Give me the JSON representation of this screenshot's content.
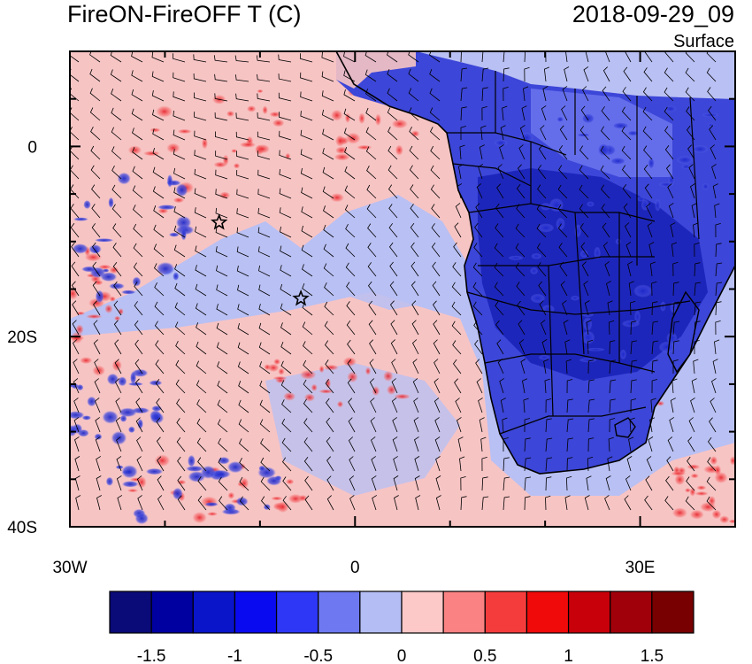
{
  "title_left": "FireON-FireOFF T (C)",
  "title_right": "2018-09-29_09",
  "subtitle_right": "Surface",
  "map": {
    "lon_range": [
      -30,
      40
    ],
    "lat_range": [
      -40,
      10
    ],
    "x_labels": [
      {
        "lon": -30,
        "text": "30W"
      },
      {
        "lon": 0,
        "text": "0"
      },
      {
        "lon": 30,
        "text": "30E"
      }
    ],
    "y_labels": [
      {
        "lat": 0,
        "text": "0"
      },
      {
        "lat": -20,
        "text": "20S"
      },
      {
        "lat": -40,
        "text": "40S"
      }
    ],
    "markers": [
      {
        "type": "star-icon",
        "lon": -14.3,
        "lat": -8.0
      },
      {
        "type": "star-icon",
        "lon": -5.7,
        "lat": -16.0
      }
    ]
  },
  "colorbar": {
    "colors": [
      "#0a0a78",
      "#0000a0",
      "#0a14c8",
      "#0a0af0",
      "#2d37f5",
      "#6e78f0",
      "#b4bef5",
      "#fcc8c8",
      "#fa8282",
      "#f53c3c",
      "#f00a0a",
      "#c8000a",
      "#a0000a",
      "#780000"
    ],
    "labels": [
      {
        "value": -1.5,
        "text": "-1.5"
      },
      {
        "value": -1,
        "text": "-1"
      },
      {
        "value": -0.5,
        "text": "-0.5"
      },
      {
        "value": 0,
        "text": "0"
      },
      {
        "value": 0.5,
        "text": "0.5"
      },
      {
        "value": 1,
        "text": "1"
      },
      {
        "value": 1.5,
        "text": "1.5"
      }
    ]
  }
}
